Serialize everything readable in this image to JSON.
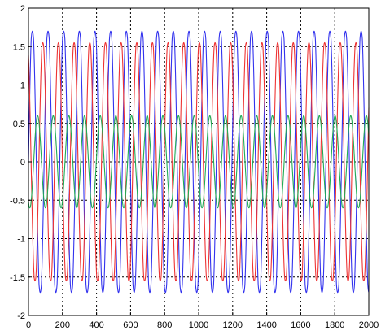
{
  "chart_data": {
    "type": "line",
    "title": "",
    "xlabel": "",
    "ylabel": "",
    "xlim": [
      0,
      2000
    ],
    "ylim": [
      -2,
      2
    ],
    "x_ticks": [
      0,
      200,
      400,
      600,
      800,
      1000,
      1200,
      1400,
      1600,
      1800,
      2000
    ],
    "y_ticks": [
      -2,
      -1.5,
      -1,
      -0.5,
      0,
      0.5,
      1,
      1.5,
      2
    ],
    "x_tick_labels": [
      "0",
      "200",
      "400",
      "600",
      "800",
      "1000",
      "1200",
      "1400",
      "1600",
      "1800",
      "2000"
    ],
    "y_tick_labels": [
      "-2",
      "-1.5",
      "-1",
      "-0.5",
      "0",
      "0.5",
      "1",
      "1.5",
      "2"
    ],
    "grid": true,
    "grid_style": "dotted",
    "legend": "none",
    "series": [
      {
        "color": "#3333ee",
        "amplitude": 1.8,
        "period": 92,
        "phase_deg": 0,
        "peak_clip": 1.6
      },
      {
        "color": "#ee3333",
        "amplitude": 1.6,
        "period": 92,
        "phase_deg": 120,
        "peak_clip": 1.5
      },
      {
        "color": "#22aa55",
        "amplitude": 0.6,
        "period": 92,
        "phase_deg": 240,
        "peak_clip": 0.6
      }
    ]
  }
}
